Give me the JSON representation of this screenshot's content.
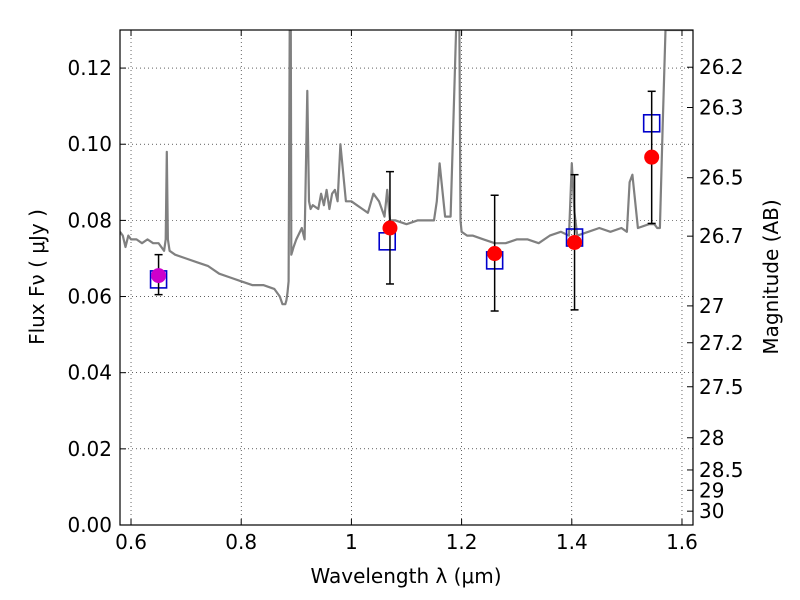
{
  "chart_data": {
    "type": "scatter",
    "title": "",
    "xlabel": "Wavelength  λ (μm)",
    "ylabel": "Flux  Fν  ( μJy )",
    "y2label": "Magnitude (AB)",
    "xlim": [
      0.58,
      1.62
    ],
    "ylim": [
      0.0,
      0.13
    ],
    "grid": true,
    "x_ticks": [
      0.6,
      0.8,
      1.0,
      1.2,
      1.4,
      1.6
    ],
    "x_tick_labels": [
      "0.6",
      "0.8",
      "1",
      "1.2",
      "1.4",
      "1.6"
    ],
    "y_ticks": [
      0.0,
      0.02,
      0.04,
      0.06,
      0.08,
      0.1,
      0.12
    ],
    "y_tick_labels": [
      "0.00",
      "0.02",
      "0.04",
      "0.06",
      "0.08",
      "0.10",
      "0.12"
    ],
    "y2_ticks": [
      26.2,
      26.3,
      26.5,
      26.7,
      27,
      27.2,
      27.5,
      28,
      28.5,
      29,
      30
    ],
    "y2_tick_labels": [
      "26.2",
      "26.3",
      "26.5",
      "26.7",
      "27",
      "27.2",
      "27.5",
      "28",
      "28.5",
      "29",
      "30"
    ],
    "series": [
      {
        "kind": "line",
        "color": "#808080",
        "x": [
          0.58,
          0.585,
          0.59,
          0.595,
          0.6,
          0.61,
          0.62,
          0.63,
          0.64,
          0.65,
          0.655,
          0.66,
          0.663,
          0.665,
          0.667,
          0.67,
          0.68,
          0.7,
          0.72,
          0.74,
          0.76,
          0.78,
          0.8,
          0.82,
          0.84,
          0.86,
          0.87,
          0.875,
          0.88,
          0.882,
          0.884,
          0.886,
          0.888,
          0.89,
          0.891,
          0.893,
          0.895,
          0.9,
          0.91,
          0.915,
          0.92,
          0.923,
          0.926,
          0.93,
          0.94,
          0.945,
          0.95,
          0.955,
          0.96,
          0.965,
          0.97,
          0.975,
          0.98,
          0.99,
          1.0,
          1.01,
          1.02,
          1.03,
          1.04,
          1.05,
          1.06,
          1.065,
          1.07,
          1.08,
          1.1,
          1.12,
          1.14,
          1.15,
          1.155,
          1.16,
          1.17,
          1.18,
          1.19,
          1.192,
          1.194,
          1.196,
          1.198,
          1.2,
          1.21,
          1.22,
          1.24,
          1.26,
          1.28,
          1.3,
          1.32,
          1.34,
          1.36,
          1.38,
          1.395,
          1.4,
          1.405,
          1.41,
          1.43,
          1.45,
          1.47,
          1.49,
          1.5,
          1.505,
          1.51,
          1.52,
          1.54,
          1.55,
          1.555,
          1.56,
          1.565,
          1.57,
          1.58,
          1.585,
          1.59,
          1.6,
          1.62
        ],
        "y": [
          0.077,
          0.076,
          0.073,
          0.076,
          0.075,
          0.075,
          0.074,
          0.075,
          0.074,
          0.074,
          0.073,
          0.072,
          0.075,
          0.098,
          0.075,
          0.072,
          0.071,
          0.07,
          0.069,
          0.068,
          0.066,
          0.065,
          0.064,
          0.063,
          0.063,
          0.062,
          0.06,
          0.058,
          0.058,
          0.059,
          0.061,
          0.064,
          0.13,
          0.13,
          0.071,
          0.072,
          0.073,
          0.075,
          0.078,
          0.075,
          0.114,
          0.085,
          0.083,
          0.084,
          0.083,
          0.087,
          0.084,
          0.088,
          0.083,
          0.087,
          0.088,
          0.085,
          0.1,
          0.085,
          0.085,
          0.084,
          0.083,
          0.082,
          0.087,
          0.085,
          0.081,
          0.088,
          0.08,
          0.08,
          0.079,
          0.08,
          0.08,
          0.08,
          0.085,
          0.095,
          0.081,
          0.081,
          0.13,
          0.13,
          0.13,
          0.13,
          0.08,
          0.077,
          0.076,
          0.076,
          0.075,
          0.074,
          0.074,
          0.075,
          0.075,
          0.074,
          0.076,
          0.077,
          0.076,
          0.095,
          0.082,
          0.076,
          0.077,
          0.078,
          0.077,
          0.078,
          0.077,
          0.09,
          0.092,
          0.078,
          0.079,
          0.079,
          0.078,
          0.078,
          0.105,
          0.13,
          0.13,
          0.13,
          0.13,
          0.13,
          0.13
        ]
      },
      {
        "kind": "scatter",
        "marker": "open-square",
        "color": "#0000cc",
        "x": [
          0.65,
          1.065,
          1.26,
          1.405,
          1.545
        ],
        "y": [
          0.0645,
          0.0745,
          0.0695,
          0.0755,
          0.1055
        ]
      },
      {
        "kind": "scatter",
        "marker": "filled-circle",
        "color": "#ff0000",
        "x": [
          0.65,
          1.07,
          1.26,
          1.405,
          1.545
        ],
        "y": [
          0.0655,
          0.078,
          0.0713,
          0.0742,
          0.0966
        ],
        "yerr_low": [
          0.0605,
          0.0633,
          0.0562,
          0.0565,
          0.0792
        ],
        "yerr_high": [
          0.071,
          0.0928,
          0.0866,
          0.092,
          0.1139
        ]
      }
    ]
  }
}
